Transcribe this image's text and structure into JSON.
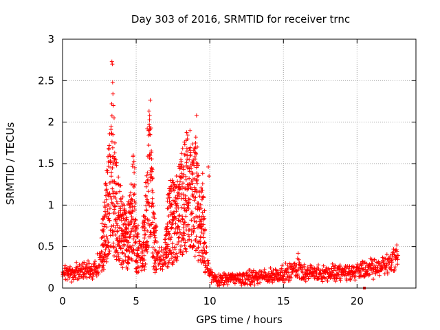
{
  "chart_data": {
    "type": "scatter",
    "title": "Day 303 of 2016, SRMTID for receiver trnc",
    "xlabel": "GPS time / hours",
    "ylabel": "SRMTID / TECUs",
    "xlim": [
      0,
      24
    ],
    "ylim": [
      0,
      3
    ],
    "xticks": [
      0,
      5,
      10,
      15,
      20
    ],
    "yticks": [
      0,
      0.5,
      1,
      1.5,
      2,
      2.5,
      3
    ],
    "xtick_labels": [
      "0",
      "5",
      "10",
      "15",
      "20"
    ],
    "ytick_labels": [
      "0",
      "0.5",
      "1",
      "1.5",
      "2",
      "2.5",
      "3"
    ],
    "grid": true,
    "marker": "+",
    "color": "#ff0000",
    "envelope": {
      "x": [
        0,
        1,
        2,
        2.5,
        2.8,
        3.0,
        3.2,
        3.35,
        3.5,
        3.8,
        4.0,
        4.3,
        4.6,
        4.8,
        5.0,
        5.3,
        5.6,
        5.8,
        5.95,
        6.2,
        6.5,
        6.8,
        7.0,
        7.3,
        7.6,
        8.0,
        8.3,
        8.6,
        8.9,
        9.1,
        9.3,
        9.5,
        9.7,
        10.0,
        10.5,
        12,
        14,
        15.5,
        16,
        16.5,
        18,
        20,
        21.5,
        22.3,
        22.8
      ],
      "y": [
        0.18,
        0.2,
        0.2,
        0.3,
        0.6,
        0.9,
        1.15,
        1.35,
        1.1,
        0.8,
        0.75,
        0.55,
        0.7,
        1.1,
        0.5,
        0.4,
        0.6,
        1.3,
        1.4,
        0.6,
        0.35,
        0.3,
        0.5,
        0.85,
        0.75,
        0.95,
        1.1,
        1.2,
        1.0,
        1.1,
        0.7,
        0.9,
        0.45,
        0.15,
        0.1,
        0.12,
        0.14,
        0.2,
        0.25,
        0.18,
        0.18,
        0.2,
        0.25,
        0.32,
        0.38
      ]
    },
    "peaks": [
      {
        "x": 3.35,
        "y": 2.73
      },
      {
        "x": 3.38,
        "y": 2.7
      },
      {
        "x": 3.4,
        "y": 2.48
      },
      {
        "x": 3.42,
        "y": 2.34
      },
      {
        "x": 3.45,
        "y": 2.2
      },
      {
        "x": 3.3,
        "y": 1.95
      },
      {
        "x": 3.5,
        "y": 2.05
      },
      {
        "x": 3.55,
        "y": 1.75
      },
      {
        "x": 3.1,
        "y": 1.52
      },
      {
        "x": 3.6,
        "y": 1.5
      },
      {
        "x": 4.8,
        "y": 1.6
      },
      {
        "x": 4.9,
        "y": 1.45
      },
      {
        "x": 5.9,
        "y": 1.95
      },
      {
        "x": 6.0,
        "y": 1.93
      },
      {
        "x": 5.75,
        "y": 1.92
      },
      {
        "x": 5.95,
        "y": 1.6
      },
      {
        "x": 6.05,
        "y": 1.45
      },
      {
        "x": 8.4,
        "y": 1.78
      },
      {
        "x": 8.45,
        "y": 1.65
      },
      {
        "x": 8.6,
        "y": 1.55
      },
      {
        "x": 9.1,
        "y": 2.08
      },
      {
        "x": 9.05,
        "y": 1.82
      },
      {
        "x": 9.15,
        "y": 1.7
      },
      {
        "x": 9.2,
        "y": 1.48
      },
      {
        "x": 9.9,
        "y": 1.46
      },
      {
        "x": 9.95,
        "y": 1.35
      },
      {
        "x": 16.0,
        "y": 0.42
      },
      {
        "x": 22.7,
        "y": 0.52
      },
      {
        "x": 22.6,
        "y": 0.46
      }
    ],
    "outliers": [
      {
        "x": 20.5,
        "y": 0.0
      }
    ]
  }
}
